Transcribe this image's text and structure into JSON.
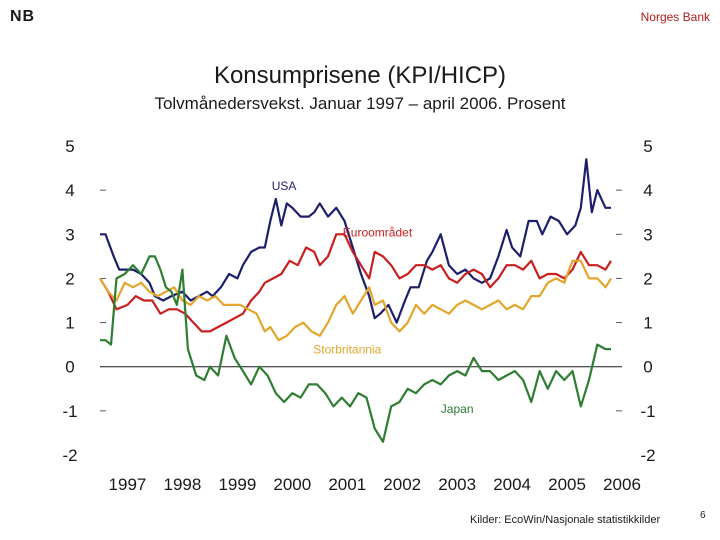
{
  "header": {
    "logo": "NB",
    "org": "Norges Bank",
    "title": "Konsumprisene (KPI/HICP)",
    "subtitle": "Tolvmånedersvekst. Januar 1997 – april 2006. Prosent"
  },
  "footer": {
    "source": "Kilder: EcoWin/Nasjonale statistikkilder",
    "page": "6"
  },
  "chart_data": {
    "type": "line",
    "title": "Konsumprisene (KPI/HICP)",
    "subtitle": "Tolvmånedersvekst. Januar 1997 – april 2006. Prosent",
    "ylim": [
      -2,
      5
    ],
    "xlim": [
      1997.0,
      2006.5
    ],
    "yticks": [
      -2,
      -1,
      0,
      1,
      2,
      3,
      4,
      5
    ],
    "ytick_labels": [
      "-2",
      "-1",
      "0",
      "1",
      "2",
      "3",
      "4",
      "5"
    ],
    "x_categories": [
      "1997",
      "1998",
      "1999",
      "2000",
      "2001",
      "2002",
      "2003",
      "2004",
      "2005",
      "2006"
    ],
    "grid": false,
    "series": [
      {
        "name": "USA",
        "color": "#1c1f6b",
        "x": [
          1997.0,
          1997.1,
          1997.25,
          1997.35,
          1997.5,
          1997.6,
          1997.75,
          1997.9,
          1998.0,
          1998.15,
          1998.3,
          1998.5,
          1998.65,
          1998.8,
          1998.95,
          1999.05,
          1999.2,
          1999.35,
          1999.5,
          1999.6,
          1999.75,
          1999.9,
          2000.0,
          2000.1,
          2000.2,
          2000.3,
          2000.4,
          2000.5,
          2000.65,
          2000.8,
          2000.9,
          2001.0,
          2001.15,
          2001.3,
          2001.45,
          2001.6,
          2001.75,
          2001.9,
          2002.0,
          2002.1,
          2002.25,
          2002.4,
          2002.55,
          2002.65,
          2002.8,
          2002.95,
          2003.05,
          2003.2,
          2003.35,
          2003.5,
          2003.65,
          2003.8,
          2003.95,
          2004.1,
          2004.25,
          2004.4,
          2004.5,
          2004.65,
          2004.8,
          2004.95,
          2005.05,
          2005.2,
          2005.35,
          2005.5,
          2005.65,
          2005.75,
          2005.85,
          2005.95,
          2006.05,
          2006.2,
          2006.3
        ],
        "values": [
          3.0,
          3.0,
          2.5,
          2.2,
          2.2,
          2.2,
          2.1,
          1.9,
          1.6,
          1.5,
          1.6,
          1.7,
          1.5,
          1.6,
          1.7,
          1.6,
          1.8,
          2.1,
          2.0,
          2.3,
          2.6,
          2.7,
          2.7,
          3.3,
          3.8,
          3.2,
          3.7,
          3.6,
          3.4,
          3.4,
          3.5,
          3.7,
          3.4,
          3.6,
          3.3,
          2.7,
          2.1,
          1.6,
          1.1,
          1.2,
          1.4,
          1.0,
          1.5,
          1.8,
          1.8,
          2.4,
          2.6,
          3.0,
          2.3,
          2.1,
          2.2,
          2.0,
          1.9,
          2.0,
          2.5,
          3.1,
          2.7,
          2.5,
          3.3,
          3.3,
          3.0,
          3.4,
          3.3,
          3.0,
          3.2,
          3.6,
          4.7,
          3.5,
          4.0,
          3.6,
          3.6
        ]
      },
      {
        "name": "Euroområdet",
        "color": "#c91f1f",
        "x": [
          1997.0,
          1997.15,
          1997.3,
          1997.5,
          1997.65,
          1997.8,
          1997.95,
          1998.1,
          1998.25,
          1998.4,
          1998.55,
          1998.7,
          1998.85,
          1999.0,
          1999.15,
          1999.3,
          1999.45,
          1999.6,
          1999.75,
          1999.9,
          2000.0,
          2000.15,
          2000.3,
          2000.45,
          2000.6,
          2000.75,
          2000.9,
          2001.0,
          2001.15,
          2001.3,
          2001.45,
          2001.6,
          2001.75,
          2001.9,
          2002.0,
          2002.15,
          2002.3,
          2002.45,
          2002.6,
          2002.75,
          2002.9,
          2003.05,
          2003.2,
          2003.35,
          2003.5,
          2003.65,
          2003.8,
          2003.95,
          2004.1,
          2004.25,
          2004.4,
          2004.55,
          2004.7,
          2004.85,
          2005.0,
          2005.15,
          2005.3,
          2005.45,
          2005.6,
          2005.75,
          2005.9,
          2006.05,
          2006.2,
          2006.3
        ],
        "values": [
          2.0,
          1.7,
          1.3,
          1.4,
          1.6,
          1.5,
          1.5,
          1.2,
          1.3,
          1.3,
          1.2,
          1.0,
          0.8,
          0.8,
          0.9,
          1.0,
          1.1,
          1.2,
          1.5,
          1.7,
          1.9,
          2.0,
          2.1,
          2.4,
          2.3,
          2.7,
          2.6,
          2.3,
          2.5,
          3.0,
          3.0,
          2.6,
          2.3,
          2.0,
          2.6,
          2.5,
          2.3,
          2.0,
          2.1,
          2.3,
          2.3,
          2.2,
          2.3,
          2.0,
          1.9,
          2.1,
          2.2,
          2.1,
          1.8,
          2.0,
          2.3,
          2.3,
          2.2,
          2.4,
          2.0,
          2.1,
          2.1,
          2.0,
          2.2,
          2.6,
          2.3,
          2.3,
          2.2,
          2.4
        ]
      },
      {
        "name": "Storbritannia",
        "color": "#e3a52b",
        "x": [
          1997.0,
          1997.15,
          1997.3,
          1997.45,
          1997.6,
          1997.75,
          1997.9,
          1998.05,
          1998.2,
          1998.35,
          1998.5,
          1998.65,
          1998.8,
          1998.95,
          1999.1,
          1999.25,
          1999.4,
          1999.55,
          1999.7,
          1999.85,
          2000.0,
          2000.1,
          2000.25,
          2000.4,
          2000.55,
          2000.7,
          2000.85,
          2001.0,
          2001.15,
          2001.3,
          2001.45,
          2001.6,
          2001.75,
          2001.9,
          2002.0,
          2002.15,
          2002.3,
          2002.45,
          2002.6,
          2002.75,
          2002.9,
          2003.05,
          2003.2,
          2003.35,
          2003.5,
          2003.65,
          2003.8,
          2003.95,
          2004.1,
          2004.25,
          2004.4,
          2004.55,
          2004.7,
          2004.85,
          2005.0,
          2005.15,
          2005.3,
          2005.45,
          2005.6,
          2005.75,
          2005.9,
          2006.05,
          2006.2,
          2006.3
        ],
        "values": [
          2.0,
          1.7,
          1.5,
          1.9,
          1.8,
          1.9,
          1.7,
          1.6,
          1.7,
          1.8,
          1.5,
          1.4,
          1.6,
          1.5,
          1.6,
          1.4,
          1.4,
          1.4,
          1.3,
          1.2,
          0.8,
          0.9,
          0.6,
          0.7,
          0.9,
          1.0,
          0.8,
          0.7,
          1.0,
          1.4,
          1.6,
          1.2,
          1.5,
          1.8,
          1.4,
          1.5,
          1.0,
          0.8,
          1.0,
          1.4,
          1.2,
          1.4,
          1.3,
          1.2,
          1.4,
          1.5,
          1.4,
          1.3,
          1.4,
          1.5,
          1.3,
          1.4,
          1.3,
          1.6,
          1.6,
          1.9,
          2.0,
          1.9,
          2.4,
          2.4,
          2.0,
          2.0,
          1.8,
          2.0
        ]
      },
      {
        "name": "Japan",
        "color": "#2e7d32",
        "x": [
          1997.0,
          1997.1,
          1997.2,
          1997.3,
          1997.45,
          1997.6,
          1997.75,
          1997.9,
          1998.0,
          1998.1,
          1998.2,
          1998.3,
          1998.4,
          1998.5,
          1998.6,
          1998.75,
          1998.9,
          1999.0,
          1999.15,
          1999.3,
          1999.45,
          1999.6,
          1999.75,
          1999.9,
          2000.05,
          2000.2,
          2000.35,
          2000.5,
          2000.65,
          2000.8,
          2000.95,
          2001.1,
          2001.25,
          2001.4,
          2001.55,
          2001.7,
          2001.85,
          2002.0,
          2002.15,
          2002.3,
          2002.45,
          2002.6,
          2002.75,
          2002.9,
          2003.05,
          2003.2,
          2003.35,
          2003.5,
          2003.65,
          2003.8,
          2003.95,
          2004.1,
          2004.25,
          2004.4,
          2004.55,
          2004.7,
          2004.85,
          2005.0,
          2005.15,
          2005.3,
          2005.45,
          2005.6,
          2005.75,
          2005.9,
          2006.05,
          2006.2,
          2006.3
        ],
        "values": [
          0.6,
          0.6,
          0.5,
          2.0,
          2.1,
          2.3,
          2.1,
          2.5,
          2.5,
          2.2,
          1.8,
          1.7,
          1.4,
          2.2,
          0.4,
          -0.2,
          -0.3,
          0.0,
          -0.2,
          0.7,
          0.2,
          -0.1,
          -0.4,
          0.0,
          -0.2,
          -0.6,
          -0.8,
          -0.6,
          -0.7,
          -0.4,
          -0.4,
          -0.6,
          -0.9,
          -0.7,
          -0.9,
          -0.6,
          -0.7,
          -1.4,
          -1.7,
          -0.9,
          -0.8,
          -0.5,
          -0.6,
          -0.4,
          -0.3,
          -0.4,
          -0.2,
          -0.1,
          -0.2,
          0.2,
          -0.1,
          -0.1,
          -0.3,
          -0.2,
          -0.1,
          -0.3,
          -0.8,
          -0.1,
          -0.5,
          -0.1,
          -0.3,
          -0.1,
          -0.9,
          -0.3,
          0.5,
          0.4,
          0.4
        ]
      }
    ],
    "annotations": [
      {
        "text": "USA",
        "x": 2000.35,
        "y": 4.0,
        "series": 0
      },
      {
        "text": "Euroområdet",
        "x": 2002.05,
        "y": 2.95,
        "series": 1
      },
      {
        "text": "Storbritannia",
        "x": 2001.5,
        "y": 0.3,
        "series": 2
      },
      {
        "text": "Japan",
        "x": 2003.5,
        "y": -1.05,
        "series": 3
      }
    ]
  }
}
